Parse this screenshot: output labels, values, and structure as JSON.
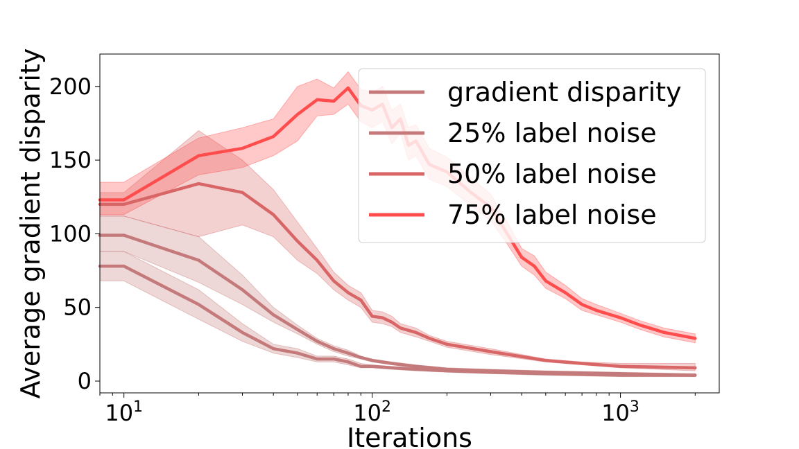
{
  "chart_data": {
    "type": "line",
    "xlabel": "Iterations",
    "ylabel": "Average gradient disparity",
    "xscale": "log",
    "xlim": [
      8,
      2500
    ],
    "ylim": [
      -8,
      222
    ],
    "x_ticks": [
      {
        "value": 10,
        "base": "10",
        "exp": "1"
      },
      {
        "value": 100,
        "base": "10",
        "exp": "2"
      },
      {
        "value": 1000,
        "base": "10",
        "exp": "3"
      }
    ],
    "y_ticks": [
      0,
      50,
      100,
      150,
      200
    ],
    "grid": false,
    "legend_position": "top-right",
    "series": [
      {
        "name": "gradient disparity",
        "color": "#c47a7a",
        "x": [
          8,
          10,
          20,
          30,
          40,
          50,
          60,
          70,
          80,
          90,
          100,
          120,
          150,
          200,
          300,
          500,
          1000,
          2000
        ],
        "y": [
          78,
          78,
          52,
          33,
          22,
          19,
          15,
          15,
          13,
          10,
          10,
          9,
          8,
          7,
          6,
          5,
          4,
          4
        ],
        "lower": [
          68,
          68,
          42,
          27,
          19,
          16,
          13,
          13,
          11,
          9,
          9,
          8,
          7,
          6,
          5,
          4,
          3,
          3
        ],
        "upper": [
          88,
          88,
          62,
          39,
          25,
          22,
          17,
          17,
          15,
          12,
          11,
          10,
          9,
          8,
          7,
          6,
          5,
          5
        ]
      },
      {
        "name": "25% label noise",
        "color": "#c47a7a",
        "x": [
          8,
          10,
          20,
          30,
          40,
          50,
          60,
          70,
          80,
          90,
          100,
          120,
          150,
          200,
          300,
          500,
          1000,
          2000
        ],
        "y": [
          99,
          99,
          82,
          62,
          45,
          35,
          27,
          22,
          19,
          16,
          14,
          12,
          10,
          8,
          7,
          6,
          5,
          4
        ],
        "lower": [
          88,
          88,
          67,
          52,
          40,
          32,
          25,
          20,
          17,
          15,
          13,
          11,
          9,
          7,
          6,
          5,
          4,
          3
        ],
        "upper": [
          112,
          112,
          98,
          72,
          50,
          38,
          29,
          24,
          21,
          17,
          15,
          13,
          11,
          9,
          8,
          7,
          6,
          5
        ]
      },
      {
        "name": "50% label noise",
        "color": "#d86666",
        "x": [
          8,
          10,
          20,
          30,
          40,
          50,
          60,
          70,
          80,
          90,
          100,
          110,
          120,
          130,
          150,
          170,
          200,
          300,
          500,
          700,
          1000,
          2000
        ],
        "y": [
          120,
          120,
          134,
          128,
          113,
          95,
          82,
          68,
          60,
          55,
          44,
          43,
          40,
          36,
          33,
          29,
          25,
          20,
          14,
          12,
          10,
          9
        ],
        "lower": [
          112,
          112,
          98,
          106,
          98,
          82,
          73,
          62,
          55,
          50,
          40,
          39,
          37,
          33,
          30,
          27,
          23,
          18,
          13,
          11,
          9,
          7
        ],
        "upper": [
          128,
          128,
          170,
          150,
          130,
          108,
          90,
          74,
          65,
          60,
          48,
          47,
          44,
          39,
          36,
          31,
          27,
          22,
          15,
          13,
          12,
          12
        ]
      },
      {
        "name": "75% label noise",
        "color": "#ff4d4d",
        "x": [
          8,
          10,
          20,
          30,
          40,
          50,
          60,
          70,
          80,
          90,
          100,
          110,
          120,
          130,
          140,
          150,
          170,
          200,
          250,
          300,
          350,
          400,
          450,
          500,
          600,
          700,
          800,
          1000,
          1200,
          1500,
          2000
        ],
        "y": [
          123,
          123,
          153,
          158,
          166,
          181,
          191,
          190,
          199,
          187,
          184,
          188,
          172,
          178,
          160,
          163,
          147,
          142,
          128,
          118,
          100,
          84,
          78,
          68,
          60,
          52,
          48,
          43,
          38,
          33,
          29
        ],
        "lower": [
          113,
          113,
          140,
          145,
          153,
          163,
          180,
          181,
          188,
          176,
          172,
          176,
          161,
          168,
          150,
          153,
          137,
          132,
          119,
          109,
          93,
          78,
          72,
          63,
          56,
          48,
          45,
          40,
          35,
          30,
          26
        ],
        "upper": [
          135,
          135,
          165,
          172,
          178,
          200,
          205,
          199,
          210,
          198,
          196,
          200,
          184,
          188,
          172,
          174,
          158,
          152,
          138,
          127,
          108,
          90,
          85,
          74,
          65,
          56,
          52,
          46,
          41,
          36,
          32
        ]
      }
    ]
  }
}
